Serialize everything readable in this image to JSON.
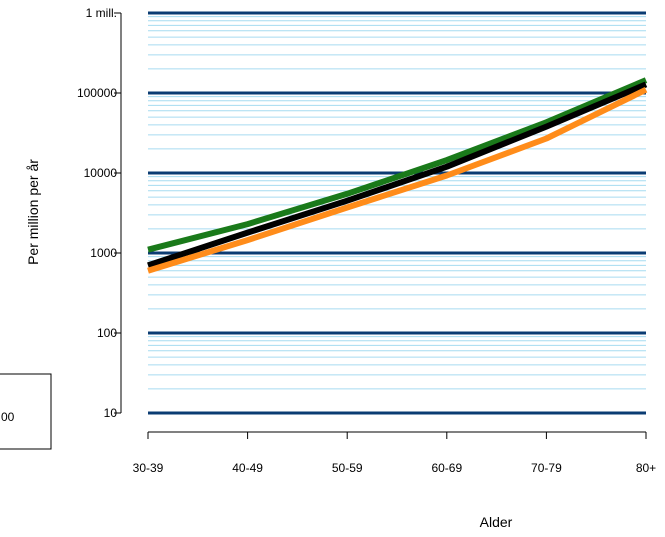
{
  "chart_data": {
    "type": "line",
    "title": "",
    "xlabel": "Alder",
    "ylabel": "Per million per år",
    "categories": [
      "30-39",
      "40-49",
      "50-59",
      "60-69",
      "70-79",
      "80+"
    ],
    "y_scale": "log",
    "ylim": [
      10,
      1000000
    ],
    "y_ticks": [
      10,
      100,
      1000,
      10000,
      100000,
      1000000
    ],
    "y_tick_labels": [
      "10",
      "100",
      "1000",
      "10000",
      "100000",
      "1 mill."
    ],
    "grid": true,
    "grid_major_color": "#0b3c73",
    "grid_minor_color": "#a6dbf0",
    "series": [
      {
        "color": "#1a7a1a",
        "values": [
          1100,
          2300,
          5500,
          14500,
          43000,
          145000
        ]
      },
      {
        "color": "#000000",
        "values": [
          700,
          1800,
          4500,
          12000,
          38000,
          128000
        ]
      },
      {
        "color": "#ff8c1a",
        "values": [
          600,
          1450,
          3700,
          9300,
          27000,
          110000
        ]
      }
    ]
  },
  "legend_fragment": "00"
}
